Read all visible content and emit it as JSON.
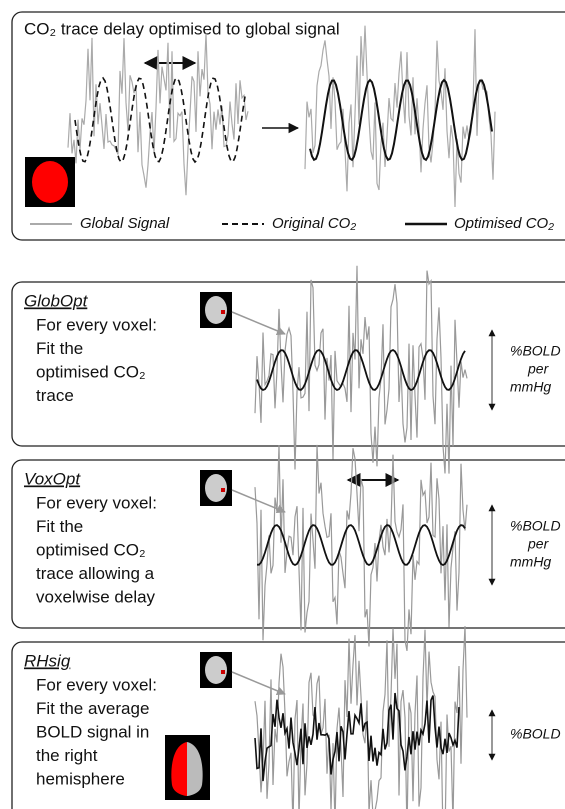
{
  "panel1": {
    "title": "CO₂ trace delay optimised to global signal",
    "legend": [
      "Global Signal",
      "Original CO₂",
      "Optimised CO₂"
    ]
  },
  "methods": [
    {
      "name": "GlobOpt",
      "lines": [
        "For every voxel:",
        "Fit the",
        "optimised CO₂",
        "trace"
      ],
      "scale": [
        "%BOLD",
        "per",
        "mmHg"
      ]
    },
    {
      "name": "VoxOpt",
      "lines": [
        "For every voxel:",
        "Fit the",
        "optimised CO₂",
        "trace allowing a",
        "voxelwise delay"
      ],
      "scale": [
        "%BOLD",
        "per",
        "mmHg"
      ]
    },
    {
      "name": "RHsig",
      "lines": [
        "For every voxel:",
        "Fit the average",
        "BOLD signal in",
        "the right",
        "hemisphere"
      ],
      "scale": [
        "%BOLD"
      ]
    }
  ]
}
